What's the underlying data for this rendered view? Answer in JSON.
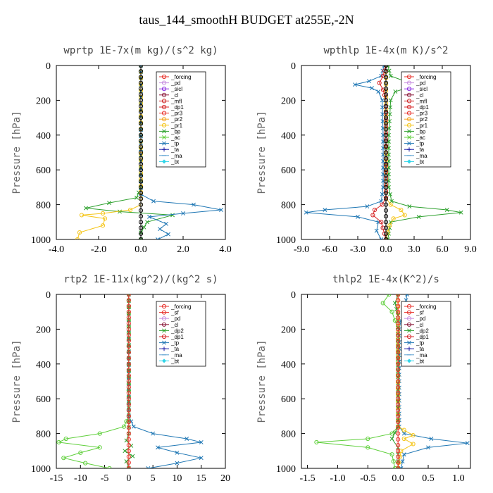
{
  "title": "taus_144_smoothH  BUDGET at255E,-2N",
  "chart_data": [
    {
      "type": "line",
      "title": "wprtp  1E-7x(m kg)/(s^2 kg)",
      "ylabel": "Pressure [hPa]",
      "xlim": [
        -4,
        4
      ],
      "xticks": [
        "-4.0",
        "-2.0",
        "0.0",
        "2.0",
        "4.0"
      ],
      "xtick_values": [
        -4,
        -2,
        0,
        2,
        4
      ],
      "ylim": [
        1000,
        0
      ],
      "yticks": [
        "0",
        "200",
        "400",
        "600",
        "800",
        "1000"
      ],
      "legend": [
        "_forcing",
        "_pd",
        "_sicl",
        "_cl",
        "_mfl",
        "_dp1",
        "_pr3",
        "_pr2",
        "_pr1",
        "_bp",
        "_ac",
        "_tp",
        "_ta",
        "_ma",
        "_bt"
      ],
      "series": [
        {
          "name": "_ac",
          "color": "#2ca02c",
          "marker": "x",
          "x": [
            0,
            0,
            -0.2,
            -1.5,
            -2.6,
            -1.0,
            1.5,
            0.3,
            0,
            0
          ],
          "y": [
            0,
            700,
            760,
            790,
            820,
            840,
            860,
            900,
            960,
            1000
          ]
        },
        {
          "name": "_tp",
          "color": "#1f77b4",
          "marker": "x",
          "x": [
            0,
            0,
            0.6,
            2.5,
            3.8,
            2.0,
            0.4,
            1.2,
            0.9,
            1.3,
            0.8
          ],
          "y": [
            0,
            740,
            780,
            800,
            830,
            850,
            870,
            910,
            940,
            970,
            1000
          ]
        },
        {
          "name": "_pr1",
          "color": "#f5c518",
          "marker": "o",
          "x": [
            0,
            0,
            -0.5,
            -1.8,
            -2.8,
            -1.7,
            -1.8,
            -2.9,
            -3.0
          ],
          "y": [
            0,
            800,
            830,
            850,
            860,
            880,
            920,
            960,
            1000
          ]
        },
        {
          "name": "_forcing",
          "color": "#000000",
          "marker": "o",
          "x": [
            0,
            0,
            0,
            0,
            0,
            0,
            0,
            0,
            0,
            0,
            0
          ],
          "y": [
            0,
            100,
            200,
            300,
            400,
            500,
            600,
            700,
            800,
            900,
            1000
          ]
        }
      ]
    },
    {
      "type": "line",
      "title": "wpthlp  1E-4x(m K)/s^2",
      "ylabel": "Pressure [hPa]",
      "xlim": [
        -9,
        9
      ],
      "xticks": [
        "-9.0",
        "-6.0",
        "-3.0",
        "0.0",
        "3.0",
        "6.0",
        "9.0"
      ],
      "xtick_values": [
        -9,
        -6,
        -3,
        0,
        3,
        6,
        9
      ],
      "ylim": [
        1000,
        0
      ],
      "yticks": [
        "0",
        "200",
        "400",
        "600",
        "800",
        "1000"
      ],
      "legend": [
        "_forcing",
        "_pd",
        "_sicl",
        "_cl",
        "_mfl",
        "_dp1",
        "_pr3",
        "_pr2",
        "_pr1",
        "_bp",
        "_ac",
        "_tp",
        "_ta",
        "_ma",
        "_bt"
      ],
      "series": [
        {
          "name": "_tp",
          "color": "#1f77b4",
          "marker": "x",
          "x": [
            -0.2,
            -0.5,
            -1.8,
            -3.3,
            -1.5,
            -0.8,
            -0.4,
            -0.3,
            -0.3,
            -0.5,
            -2.0,
            -6.5,
            -8.5,
            -3.0,
            -0.8,
            -1.0,
            -0.5
          ],
          "y": [
            0,
            60,
            90,
            110,
            130,
            150,
            200,
            400,
            700,
            780,
            810,
            830,
            845,
            870,
            900,
            950,
            1000
          ]
        },
        {
          "name": "_ac",
          "color": "#2ca02c",
          "marker": "x",
          "x": [
            0.2,
            0.5,
            2.0,
            4.5,
            2.2,
            1.0,
            0.5,
            0.3,
            0.3,
            0.6,
            2.5,
            6.5,
            8.0,
            3.5,
            0.5,
            0.2
          ],
          "y": [
            0,
            60,
            90,
            110,
            130,
            150,
            200,
            400,
            700,
            780,
            810,
            830,
            845,
            870,
            900,
            1000
          ]
        },
        {
          "name": "_pr2",
          "color": "#f5c518",
          "marker": "o",
          "x": [
            0,
            0,
            0.5,
            1.6,
            2.0,
            0.8,
            0.4,
            0
          ],
          "y": [
            0,
            760,
            800,
            830,
            860,
            880,
            920,
            1000
          ]
        },
        {
          "name": "_dp1",
          "color": "#d62728",
          "marker": "o",
          "x": [
            0,
            -0.3,
            -0.7,
            -0.3,
            0,
            0,
            -0.4,
            -1.2,
            -1.4,
            -0.5,
            0
          ],
          "y": [
            0,
            60,
            100,
            140,
            200,
            760,
            800,
            830,
            860,
            900,
            1000
          ]
        },
        {
          "name": "_forcing",
          "color": "#000000",
          "marker": "o",
          "x": [
            0,
            0,
            0,
            0,
            0,
            0,
            0,
            0,
            0,
            0,
            0
          ],
          "y": [
            0,
            100,
            200,
            300,
            400,
            500,
            600,
            700,
            800,
            900,
            1000
          ]
        }
      ]
    },
    {
      "type": "line",
      "title": "rtp2  1E-11x(kg^2)/(kg^2 s)",
      "ylabel": "Pressure [hPa]",
      "xlim": [
        -15,
        20
      ],
      "xticks": [
        "-15",
        "-10",
        "-5",
        "0",
        "5",
        "10",
        "15",
        "20"
      ],
      "xtick_values": [
        -15,
        -10,
        -5,
        0,
        5,
        10,
        15,
        20
      ],
      "ylim": [
        1000,
        0
      ],
      "yticks": [
        "0",
        "200",
        "400",
        "600",
        "800",
        "1000"
      ],
      "legend": [
        "_forcing",
        "_sf",
        "_pd",
        "_cl",
        "_dp2",
        "_dp1",
        "_tp",
        "_ta",
        "_ma",
        "_bt"
      ],
      "series": [
        {
          "name": "_dp1",
          "color": "#5ecf3a",
          "marker": "o",
          "x": [
            0,
            0,
            -1.0,
            -6.0,
            -13.0,
            -14.5,
            -6.0,
            -10.0,
            -13.5,
            -9.0,
            -4.0
          ],
          "y": [
            0,
            700,
            760,
            800,
            830,
            850,
            880,
            910,
            940,
            970,
            1000
          ]
        },
        {
          "name": "_tp",
          "color": "#1f77b4",
          "marker": "x",
          "x": [
            0,
            0,
            1.0,
            5.0,
            12.0,
            15.0,
            6.0,
            10.0,
            15.0,
            10.0,
            4.0
          ],
          "y": [
            0,
            700,
            760,
            800,
            830,
            850,
            880,
            910,
            940,
            970,
            1000
          ]
        },
        {
          "name": "_dp2",
          "color": "#2ca02c",
          "marker": "x",
          "x": [
            0,
            0,
            -0.5,
            0.5,
            -0.8,
            0.8,
            -0.5,
            0
          ],
          "y": [
            0,
            800,
            840,
            870,
            900,
            930,
            960,
            1000
          ]
        },
        {
          "name": "_forcing",
          "color": "#e8322b",
          "marker": "o",
          "x": [
            0,
            0,
            0,
            0,
            0,
            0,
            0,
            0,
            0,
            0,
            0
          ],
          "y": [
            0,
            100,
            200,
            300,
            400,
            500,
            600,
            700,
            800,
            900,
            1000
          ]
        }
      ]
    },
    {
      "type": "line",
      "title": "thlp2  1E-4x(K^2)/s",
      "ylabel": "Pressure [hPa]",
      "xlim": [
        -1.6,
        1.2
      ],
      "xticks": [
        "-1.5",
        "-1.0",
        "-0.5",
        "0.0",
        "0.5",
        "1.0"
      ],
      "xtick_values": [
        -1.5,
        -1.0,
        -0.5,
        0.0,
        0.5,
        1.0
      ],
      "ylim": [
        1000,
        0
      ],
      "yticks": [
        "0",
        "200",
        "400",
        "600",
        "800",
        "1000"
      ],
      "legend": [
        "_forcing",
        "_sf",
        "_pd",
        "_cl",
        "_dp2",
        "_dp1",
        "_tp",
        "_ta",
        "_ma",
        "_bt"
      ],
      "series": [
        {
          "name": "_dp1",
          "color": "#5ecf3a",
          "marker": "o",
          "x": [
            -0.15,
            -0.25,
            -0.1,
            -0.05,
            0,
            0,
            -0.1,
            -0.5,
            -1.35,
            -0.5,
            -0.1,
            -0.05
          ],
          "y": [
            0,
            50,
            100,
            150,
            200,
            760,
            800,
            830,
            850,
            880,
            920,
            1000
          ]
        },
        {
          "name": "_tp",
          "color": "#1f77b4",
          "marker": "x",
          "x": [
            0.15,
            0.1,
            0.05,
            0.02,
            0.02,
            0.1,
            0.55,
            1.15,
            0.5,
            0.1,
            0.05
          ],
          "y": [
            0,
            100,
            150,
            200,
            760,
            800,
            830,
            855,
            880,
            920,
            1000
          ]
        },
        {
          "name": "_cl",
          "color": "#f5c518",
          "marker": "o",
          "x": [
            0,
            0,
            0.1,
            0.25,
            0.1,
            0.25,
            0.05,
            0
          ],
          "y": [
            0,
            760,
            780,
            810,
            830,
            860,
            900,
            1000
          ]
        },
        {
          "name": "_dp2",
          "color": "#2ca02c",
          "marker": "x",
          "x": [
            0,
            -0.05,
            0,
            0,
            -0.1,
            0,
            0
          ],
          "y": [
            0,
            50,
            120,
            760,
            830,
            880,
            1000
          ]
        },
        {
          "name": "_forcing",
          "color": "#e8322b",
          "marker": "o",
          "x": [
            0,
            0,
            0,
            0,
            0,
            0,
            0,
            0,
            0,
            0,
            0
          ],
          "y": [
            0,
            100,
            200,
            300,
            400,
            500,
            600,
            700,
            800,
            900,
            1000
          ]
        }
      ]
    }
  ],
  "legend_styles": {
    "_forcing": {
      "color": "#e8322b",
      "marker": "o"
    },
    "_pd": {
      "color": "#c890e0",
      "marker": "o"
    },
    "_sicl": {
      "color": "#8a2be2",
      "marker": "o"
    },
    "_cl": {
      "color": "#8b1a3a",
      "marker": "o"
    },
    "_mfl": {
      "color": "#cc2222",
      "marker": "o"
    },
    "_dp1": {
      "color": "#d62728",
      "marker": "o"
    },
    "_pr3": {
      "color": "#e8322b",
      "marker": "o"
    },
    "_pr2": {
      "color": "#f5a623",
      "marker": "o"
    },
    "_pr1": {
      "color": "#f5c518",
      "marker": "o"
    },
    "_bp": {
      "color": "#2ca02c",
      "marker": "x"
    },
    "_ac": {
      "color": "#5ecf3a",
      "marker": "x"
    },
    "_tp": {
      "color": "#1f77b4",
      "marker": "x"
    },
    "_ta": {
      "color": "#1a1aa6",
      "marker": "+"
    },
    "_ma": {
      "color": "#5aa0d0",
      "marker": "-"
    },
    "_bt": {
      "color": "#30d5e8",
      "marker": "d"
    },
    "_sf": {
      "color": "#e8322b",
      "marker": "o"
    },
    "_dp2": {
      "color": "#2ca02c",
      "marker": "x"
    }
  }
}
